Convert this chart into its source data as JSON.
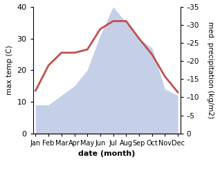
{
  "months": [
    "Jan",
    "Feb",
    "Mar",
    "Apr",
    "May",
    "Jun",
    "Jul",
    "Aug",
    "Sep",
    "Oct",
    "Nov",
    "Dec"
  ],
  "month_positions": [
    0,
    1,
    2,
    3,
    4,
    5,
    6,
    7,
    8,
    9,
    10,
    11
  ],
  "temperature": [
    13.5,
    21.5,
    25.5,
    25.5,
    26.5,
    33.0,
    35.5,
    35.5,
    30.0,
    25.0,
    18.0,
    13.0
  ],
  "precipitation": [
    9,
    9,
    12,
    15,
    20,
    31,
    40,
    35,
    30,
    27,
    14,
    12
  ],
  "temp_color": "#c0504d",
  "precip_fill_color": "#c5cfe8",
  "left_ylim": [
    0,
    40
  ],
  "right_ylim": [
    0,
    35
  ],
  "left_yticks": [
    0,
    10,
    20,
    30,
    40
  ],
  "right_yticks": [
    0,
    5,
    10,
    15,
    20,
    25,
    30,
    35
  ],
  "xlabel": "date (month)",
  "ylabel_left": "max temp (C)",
  "ylabel_right": "med. precipitation (kg/m2)",
  "temp_linewidth": 2.0,
  "fig_bg": "#ffffff",
  "axes_bg": "#ffffff"
}
